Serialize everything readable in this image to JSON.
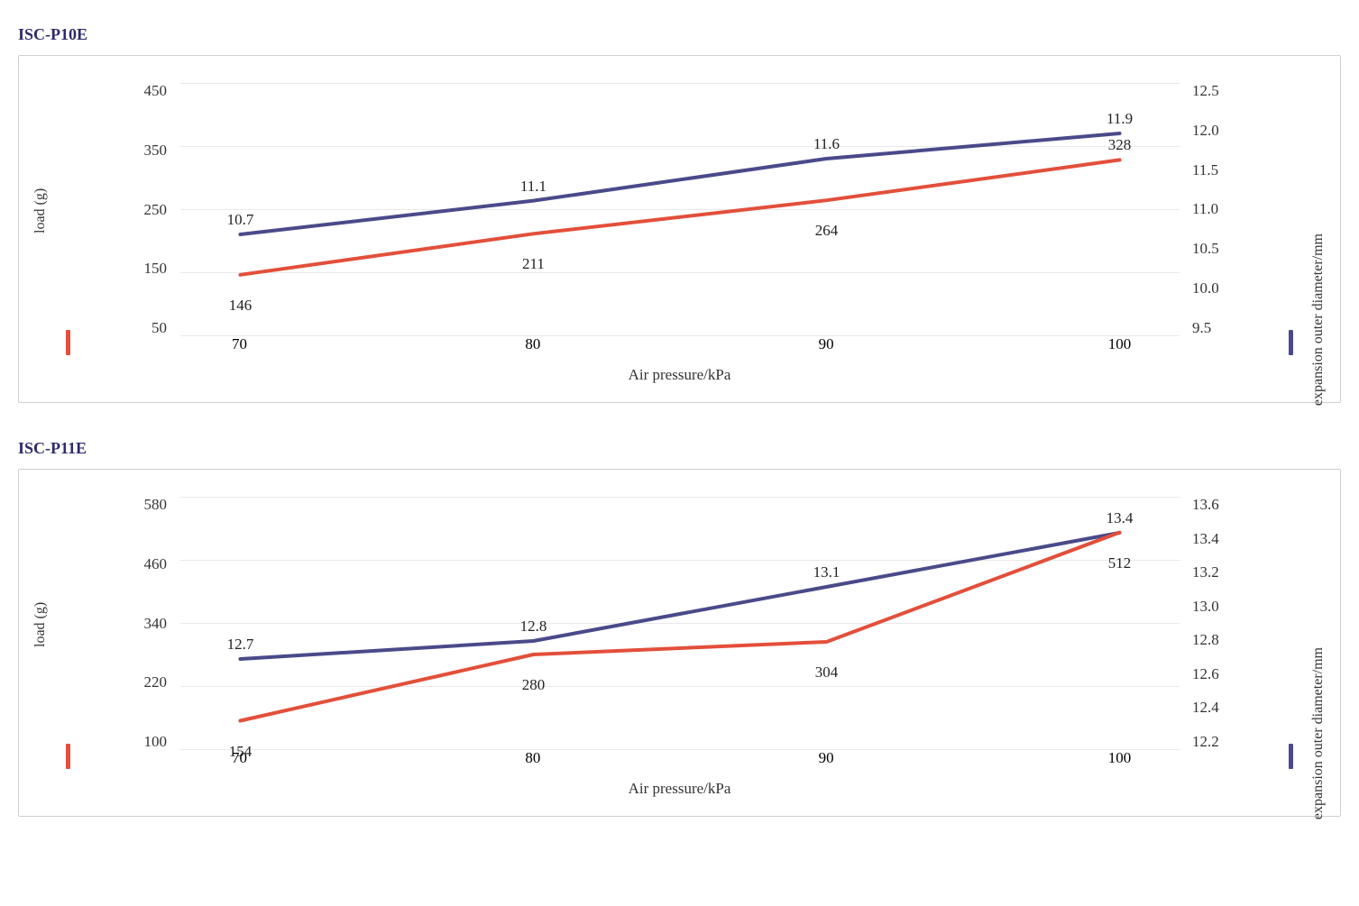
{
  "charts": [
    {
      "title": "ISC-P10E",
      "title_color": "#2e2a6b",
      "x_label": "Air pressure/kPa",
      "x_categories": [
        70,
        80,
        90,
        100
      ],
      "left_axis": {
        "label": "load (g)",
        "color": "#e34f3a",
        "min": 50,
        "max": 450,
        "step": 100,
        "values": [
          146,
          211,
          264,
          328
        ],
        "label_offsets_y": [
          24,
          24,
          24,
          -26
        ]
      },
      "right_axis": {
        "label": "expansion outer diameter/mm",
        "color": "#4a4a8a",
        "min": 9.5,
        "max": 12.5,
        "step": 0.5,
        "tick_decimals": 1,
        "values": [
          10.7,
          11.1,
          11.6,
          11.9
        ],
        "label_offsets_y": [
          -26,
          -26,
          -26,
          -26
        ]
      },
      "line_width": 4,
      "label_fontsize": 17,
      "tick_fontsize": 17,
      "grid_color": "#bfbfbf",
      "background": "#ffffff"
    },
    {
      "title": "ISC-P11E",
      "title_color": "#2e2a6b",
      "x_label": "Air pressure/kPa",
      "x_categories": [
        70,
        80,
        90,
        100
      ],
      "left_axis": {
        "label": "load (g)",
        "color": "#e34f3a",
        "min": 100,
        "max": 580,
        "step": 120,
        "values": [
          154,
          280,
          304,
          512
        ],
        "label_offsets_y": [
          24,
          24,
          24,
          24
        ]
      },
      "right_axis": {
        "label": "expansion outer diameter/mm",
        "color": "#4a4a8a",
        "min": 12.2,
        "max": 13.6,
        "step": 0.2,
        "tick_decimals": 1,
        "values": [
          12.7,
          12.8,
          13.1,
          13.4
        ],
        "label_offsets_y": [
          -26,
          -26,
          -26,
          -26
        ]
      },
      "line_width": 4,
      "label_fontsize": 17,
      "tick_fontsize": 17,
      "grid_color": "#bfbfbf",
      "background": "#ffffff"
    }
  ]
}
